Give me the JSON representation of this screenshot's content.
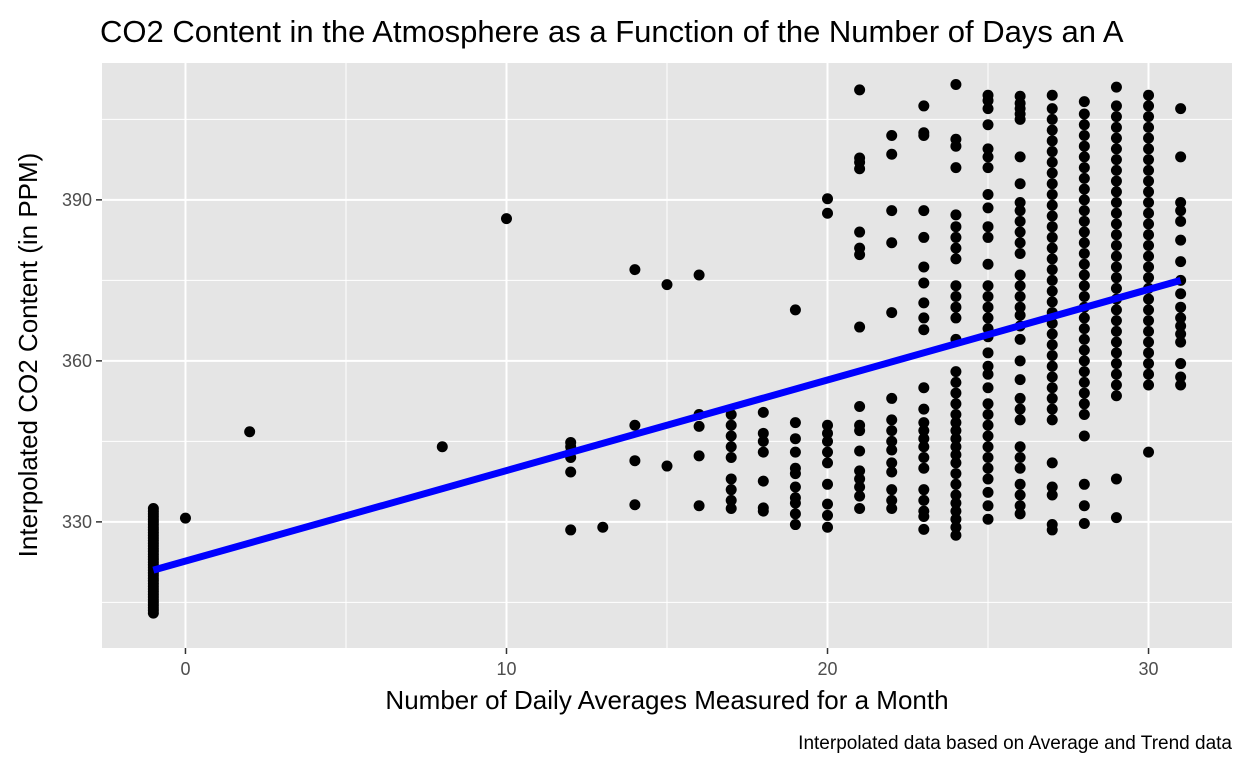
{
  "chart_data": {
    "type": "scatter",
    "title": "CO2 Content in the Atmosphere as a Function of the Number of Days an A",
    "xlabel": "Number of Daily Averages Measured for a Month",
    "ylabel": "Interpolated CO2 Content (in PPM)",
    "caption": "Interpolated data based on Average and Trend data",
    "xlim": [
      -2.6,
      32.6
    ],
    "ylim": [
      306.5,
      415.5
    ],
    "x_ticks": [
      0,
      10,
      20,
      30
    ],
    "y_ticks": [
      330,
      360,
      390
    ],
    "grid": true,
    "point_color": "#000000",
    "trend_color": "#0000ff",
    "panel_color": "#e5e5e5",
    "grid_color": "#ffffff",
    "trend_line": {
      "x": [
        -1,
        31
      ],
      "y": [
        321,
        375
      ]
    },
    "points": [
      [
        -1,
        313
      ],
      [
        -1,
        313.5
      ],
      [
        -1,
        314
      ],
      [
        -1,
        314.5
      ],
      [
        -1,
        315
      ],
      [
        -1,
        315.5
      ],
      [
        -1,
        316
      ],
      [
        -1,
        316.5
      ],
      [
        -1,
        317
      ],
      [
        -1,
        317.5
      ],
      [
        -1,
        318
      ],
      [
        -1,
        318.5
      ],
      [
        -1,
        319
      ],
      [
        -1,
        319.5
      ],
      [
        -1,
        320
      ],
      [
        -1,
        320.5
      ],
      [
        -1,
        321
      ],
      [
        -1,
        321.5
      ],
      [
        -1,
        322
      ],
      [
        -1,
        322.5
      ],
      [
        -1,
        323
      ],
      [
        -1,
        323.5
      ],
      [
        -1,
        324
      ],
      [
        -1,
        324.5
      ],
      [
        -1,
        325
      ],
      [
        -1,
        325.5
      ],
      [
        -1,
        326
      ],
      [
        -1,
        326.5
      ],
      [
        -1,
        327
      ],
      [
        -1,
        327.5
      ],
      [
        -1,
        328
      ],
      [
        -1,
        328.5
      ],
      [
        -1,
        329
      ],
      [
        -1,
        329.5
      ],
      [
        -1,
        330
      ],
      [
        -1,
        330.5
      ],
      [
        -1,
        331
      ],
      [
        -1,
        331.5
      ],
      [
        -1,
        332
      ],
      [
        -1,
        332.5
      ],
      [
        0,
        330.7
      ],
      [
        2,
        346.8
      ],
      [
        8,
        344
      ],
      [
        10,
        386.5
      ],
      [
        12,
        328.5
      ],
      [
        12,
        339.3
      ],
      [
        12,
        342
      ],
      [
        12,
        343
      ],
      [
        12,
        344
      ],
      [
        12,
        344.8
      ],
      [
        13,
        329
      ],
      [
        14,
        333.2
      ],
      [
        14,
        341.4
      ],
      [
        14,
        348
      ],
      [
        14,
        377
      ],
      [
        15,
        340.4
      ],
      [
        15,
        374.2
      ],
      [
        16,
        333
      ],
      [
        16,
        342.3
      ],
      [
        16,
        347.8
      ],
      [
        16,
        350
      ],
      [
        16,
        376
      ],
      [
        17,
        332.5
      ],
      [
        17,
        334
      ],
      [
        17,
        336
      ],
      [
        17,
        338
      ],
      [
        17,
        342
      ],
      [
        17,
        344
      ],
      [
        17,
        346
      ],
      [
        17,
        348
      ],
      [
        17,
        350
      ],
      [
        18,
        332
      ],
      [
        18,
        332.6
      ],
      [
        18,
        337.6
      ],
      [
        18,
        343
      ],
      [
        18,
        345
      ],
      [
        18,
        346.5
      ],
      [
        18,
        350.4
      ],
      [
        19,
        329.5
      ],
      [
        19,
        331.5
      ],
      [
        19,
        333.5
      ],
      [
        19,
        334.5
      ],
      [
        19,
        336.5
      ],
      [
        19,
        339
      ],
      [
        19,
        340
      ],
      [
        19,
        343
      ],
      [
        19,
        345.5
      ],
      [
        19,
        348.5
      ],
      [
        19,
        369.5
      ],
      [
        20,
        329
      ],
      [
        20,
        331.2
      ],
      [
        20,
        333.3
      ],
      [
        20,
        337
      ],
      [
        20,
        341
      ],
      [
        20,
        343
      ],
      [
        20,
        345
      ],
      [
        20,
        346.5
      ],
      [
        20,
        348
      ],
      [
        20,
        387.5
      ],
      [
        20,
        390.2
      ],
      [
        21,
        332.5
      ],
      [
        21,
        334.8
      ],
      [
        21,
        336.5
      ],
      [
        21,
        338
      ],
      [
        21,
        339.5
      ],
      [
        21,
        343.2
      ],
      [
        21,
        347
      ],
      [
        21,
        348
      ],
      [
        21,
        351.5
      ],
      [
        21,
        366.3
      ],
      [
        21,
        379.8
      ],
      [
        21,
        381
      ],
      [
        21,
        384
      ],
      [
        21,
        395.8
      ],
      [
        21,
        397
      ],
      [
        21,
        397.8
      ],
      [
        21,
        410.5
      ],
      [
        22,
        332.5
      ],
      [
        22,
        334
      ],
      [
        22,
        336
      ],
      [
        22,
        339.3
      ],
      [
        22,
        341
      ],
      [
        22,
        343.4
      ],
      [
        22,
        345
      ],
      [
        22,
        347
      ],
      [
        22,
        349
      ],
      [
        22,
        353
      ],
      [
        22,
        369
      ],
      [
        22,
        382
      ],
      [
        22,
        388
      ],
      [
        22,
        398.5
      ],
      [
        22,
        402
      ],
      [
        23,
        328.6
      ],
      [
        23,
        331
      ],
      [
        23,
        332
      ],
      [
        23,
        334
      ],
      [
        23,
        336
      ],
      [
        23,
        340
      ],
      [
        23,
        342
      ],
      [
        23,
        344
      ],
      [
        23,
        345.5
      ],
      [
        23,
        347
      ],
      [
        23,
        348.5
      ],
      [
        23,
        351
      ],
      [
        23,
        355
      ],
      [
        23,
        365.8
      ],
      [
        23,
        368
      ],
      [
        23,
        370.8
      ],
      [
        23,
        374.5
      ],
      [
        23,
        377.5
      ],
      [
        23,
        383
      ],
      [
        23,
        388
      ],
      [
        23,
        402
      ],
      [
        23,
        402.5
      ],
      [
        23,
        407.5
      ],
      [
        24,
        327.5
      ],
      [
        24,
        329
      ],
      [
        24,
        330.5
      ],
      [
        24,
        332
      ],
      [
        24,
        333.5
      ],
      [
        24,
        335
      ],
      [
        24,
        337
      ],
      [
        24,
        339
      ],
      [
        24,
        341
      ],
      [
        24,
        342.5
      ],
      [
        24,
        344
      ],
      [
        24,
        345.5
      ],
      [
        24,
        347
      ],
      [
        24,
        348.5
      ],
      [
        24,
        350
      ],
      [
        24,
        352
      ],
      [
        24,
        354
      ],
      [
        24,
        356
      ],
      [
        24,
        358
      ],
      [
        24,
        364
      ],
      [
        24,
        368
      ],
      [
        24,
        370
      ],
      [
        24,
        372
      ],
      [
        24,
        374
      ],
      [
        24,
        379
      ],
      [
        24,
        381
      ],
      [
        24,
        383
      ],
      [
        24,
        385
      ],
      [
        24,
        387.2
      ],
      [
        24,
        396
      ],
      [
        24,
        400
      ],
      [
        24,
        401.3
      ],
      [
        24,
        411.5
      ],
      [
        25,
        330.5
      ],
      [
        25,
        333
      ],
      [
        25,
        335.5
      ],
      [
        25,
        338
      ],
      [
        25,
        340
      ],
      [
        25,
        342
      ],
      [
        25,
        344
      ],
      [
        25,
        346
      ],
      [
        25,
        348
      ],
      [
        25,
        350
      ],
      [
        25,
        352
      ],
      [
        25,
        355
      ],
      [
        25,
        357.5
      ],
      [
        25,
        359
      ],
      [
        25,
        361.5
      ],
      [
        25,
        364.5
      ],
      [
        25,
        366
      ],
      [
        25,
        368
      ],
      [
        25,
        370
      ],
      [
        25,
        372
      ],
      [
        25,
        374
      ],
      [
        25,
        378
      ],
      [
        25,
        383
      ],
      [
        25,
        385
      ],
      [
        25,
        388.5
      ],
      [
        25,
        391
      ],
      [
        25,
        396
      ],
      [
        25,
        398
      ],
      [
        25,
        399.5
      ],
      [
        25,
        404
      ],
      [
        25,
        407
      ],
      [
        25,
        408.5
      ],
      [
        25,
        409.5
      ],
      [
        26,
        331.5
      ],
      [
        26,
        333
      ],
      [
        26,
        335
      ],
      [
        26,
        337
      ],
      [
        26,
        340
      ],
      [
        26,
        342
      ],
      [
        26,
        344
      ],
      [
        26,
        349
      ],
      [
        26,
        351
      ],
      [
        26,
        353
      ],
      [
        26,
        356.5
      ],
      [
        26,
        360
      ],
      [
        26,
        364
      ],
      [
        26,
        366.5
      ],
      [
        26,
        368.5
      ],
      [
        26,
        370
      ],
      [
        26,
        372
      ],
      [
        26,
        374
      ],
      [
        26,
        376
      ],
      [
        26,
        380
      ],
      [
        26,
        382
      ],
      [
        26,
        384
      ],
      [
        26,
        386
      ],
      [
        26,
        388
      ],
      [
        26,
        389.5
      ],
      [
        26,
        393
      ],
      [
        26,
        398
      ],
      [
        26,
        405
      ],
      [
        26,
        406
      ],
      [
        26,
        407
      ],
      [
        26,
        408
      ],
      [
        26,
        409.3
      ],
      [
        27,
        328.5
      ],
      [
        27,
        329.5
      ],
      [
        27,
        335
      ],
      [
        27,
        336.5
      ],
      [
        27,
        341
      ],
      [
        27,
        349
      ],
      [
        27,
        351
      ],
      [
        27,
        353
      ],
      [
        27,
        355
      ],
      [
        27,
        357
      ],
      [
        27,
        359
      ],
      [
        27,
        361
      ],
      [
        27,
        363
      ],
      [
        27,
        365
      ],
      [
        27,
        367
      ],
      [
        27,
        369
      ],
      [
        27,
        371
      ],
      [
        27,
        373
      ],
      [
        27,
        375
      ],
      [
        27,
        377
      ],
      [
        27,
        379
      ],
      [
        27,
        381
      ],
      [
        27,
        383
      ],
      [
        27,
        385
      ],
      [
        27,
        387
      ],
      [
        27,
        389
      ],
      [
        27,
        391
      ],
      [
        27,
        393
      ],
      [
        27,
        395
      ],
      [
        27,
        397
      ],
      [
        27,
        399
      ],
      [
        27,
        401
      ],
      [
        27,
        403
      ],
      [
        27,
        405
      ],
      [
        27,
        407
      ],
      [
        27,
        409.5
      ],
      [
        28,
        329.7
      ],
      [
        28,
        333
      ],
      [
        28,
        337
      ],
      [
        28,
        346
      ],
      [
        28,
        350
      ],
      [
        28,
        352
      ],
      [
        28,
        354
      ],
      [
        28,
        356
      ],
      [
        28,
        358
      ],
      [
        28,
        360
      ],
      [
        28,
        362
      ],
      [
        28,
        364
      ],
      [
        28,
        366
      ],
      [
        28,
        368
      ],
      [
        28,
        370
      ],
      [
        28,
        372
      ],
      [
        28,
        374
      ],
      [
        28,
        376
      ],
      [
        28,
        378
      ],
      [
        28,
        380
      ],
      [
        28,
        382
      ],
      [
        28,
        384
      ],
      [
        28,
        386
      ],
      [
        28,
        388
      ],
      [
        28,
        390
      ],
      [
        28,
        392
      ],
      [
        28,
        394
      ],
      [
        28,
        396
      ],
      [
        28,
        398
      ],
      [
        28,
        400
      ],
      [
        28,
        402
      ],
      [
        28,
        404
      ],
      [
        28,
        406
      ],
      [
        28,
        408.3
      ],
      [
        29,
        330.8
      ],
      [
        29,
        338
      ],
      [
        29,
        353.5
      ],
      [
        29,
        355.5
      ],
      [
        29,
        357.5
      ],
      [
        29,
        359.5
      ],
      [
        29,
        361.5
      ],
      [
        29,
        363.5
      ],
      [
        29,
        365.5
      ],
      [
        29,
        367.5
      ],
      [
        29,
        369.5
      ],
      [
        29,
        371.5
      ],
      [
        29,
        373.5
      ],
      [
        29,
        375.5
      ],
      [
        29,
        377.5
      ],
      [
        29,
        379.5
      ],
      [
        29,
        381.5
      ],
      [
        29,
        383.5
      ],
      [
        29,
        385.5
      ],
      [
        29,
        387.5
      ],
      [
        29,
        389.5
      ],
      [
        29,
        391.5
      ],
      [
        29,
        393.5
      ],
      [
        29,
        395.5
      ],
      [
        29,
        397.5
      ],
      [
        29,
        399.5
      ],
      [
        29,
        401.5
      ],
      [
        29,
        403.5
      ],
      [
        29,
        405.5
      ],
      [
        29,
        407.5
      ],
      [
        29,
        411
      ],
      [
        30,
        343
      ],
      [
        30,
        355.5
      ],
      [
        30,
        357.5
      ],
      [
        30,
        359.5
      ],
      [
        30,
        361.5
      ],
      [
        30,
        363.5
      ],
      [
        30,
        365.5
      ],
      [
        30,
        367.5
      ],
      [
        30,
        369.5
      ],
      [
        30,
        371.5
      ],
      [
        30,
        373.5
      ],
      [
        30,
        375.5
      ],
      [
        30,
        377.5
      ],
      [
        30,
        379.5
      ],
      [
        30,
        381.5
      ],
      [
        30,
        383.5
      ],
      [
        30,
        385.5
      ],
      [
        30,
        387.5
      ],
      [
        30,
        389.5
      ],
      [
        30,
        391.5
      ],
      [
        30,
        393.5
      ],
      [
        30,
        395.5
      ],
      [
        30,
        397.5
      ],
      [
        30,
        399.5
      ],
      [
        30,
        401.5
      ],
      [
        30,
        403.5
      ],
      [
        30,
        405.5
      ],
      [
        30,
        407.5
      ],
      [
        30,
        409.5
      ],
      [
        31,
        355.5
      ],
      [
        31,
        357
      ],
      [
        31,
        359.5
      ],
      [
        31,
        363.5
      ],
      [
        31,
        365
      ],
      [
        31,
        366.5
      ],
      [
        31,
        368
      ],
      [
        31,
        370
      ],
      [
        31,
        372.5
      ],
      [
        31,
        375
      ],
      [
        31,
        378.5
      ],
      [
        31,
        382.5
      ],
      [
        31,
        386
      ],
      [
        31,
        388
      ],
      [
        31,
        389.5
      ],
      [
        31,
        398
      ],
      [
        31,
        407
      ]
    ]
  }
}
